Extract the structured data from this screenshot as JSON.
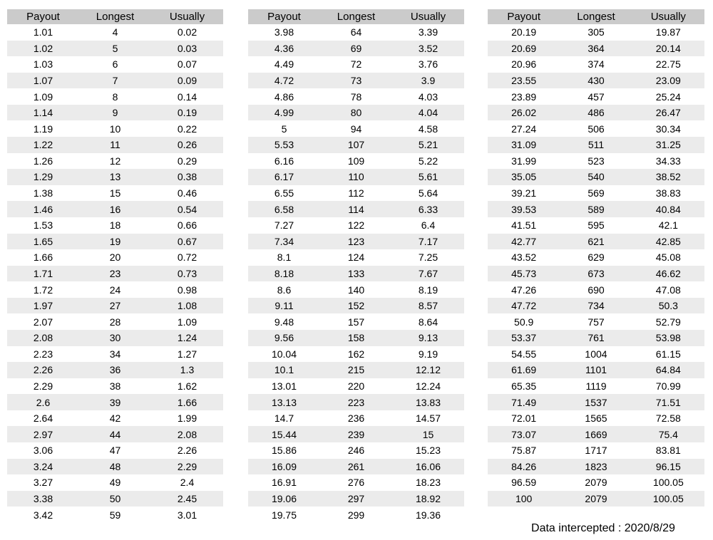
{
  "columns": [
    "Payout",
    "Longest",
    "Usually"
  ],
  "footer_note": "Data intercepted : 2020/8/29",
  "colors": {
    "header_bg": "#cbcbcb",
    "stripe_bg": "#ebebeb",
    "row_bg": "#ffffff",
    "text": "#000000"
  },
  "tables": [
    {
      "rows": [
        [
          "1.01",
          "4",
          "0.02"
        ],
        [
          "1.02",
          "5",
          "0.03"
        ],
        [
          "1.03",
          "6",
          "0.07"
        ],
        [
          "1.07",
          "7",
          "0.09"
        ],
        [
          "1.09",
          "8",
          "0.14"
        ],
        [
          "1.14",
          "9",
          "0.19"
        ],
        [
          "1.19",
          "10",
          "0.22"
        ],
        [
          "1.22",
          "11",
          "0.26"
        ],
        [
          "1.26",
          "12",
          "0.29"
        ],
        [
          "1.29",
          "13",
          "0.38"
        ],
        [
          "1.38",
          "15",
          "0.46"
        ],
        [
          "1.46",
          "16",
          "0.54"
        ],
        [
          "1.53",
          "18",
          "0.66"
        ],
        [
          "1.65",
          "19",
          "0.67"
        ],
        [
          "1.66",
          "20",
          "0.72"
        ],
        [
          "1.71",
          "23",
          "0.73"
        ],
        [
          "1.72",
          "24",
          "0.98"
        ],
        [
          "1.97",
          "27",
          "1.08"
        ],
        [
          "2.07",
          "28",
          "1.09"
        ],
        [
          "2.08",
          "30",
          "1.24"
        ],
        [
          "2.23",
          "34",
          "1.27"
        ],
        [
          "2.26",
          "36",
          "1.3"
        ],
        [
          "2.29",
          "38",
          "1.62"
        ],
        [
          "2.6",
          "39",
          "1.66"
        ],
        [
          "2.64",
          "42",
          "1.99"
        ],
        [
          "2.97",
          "44",
          "2.08"
        ],
        [
          "3.06",
          "47",
          "2.26"
        ],
        [
          "3.24",
          "48",
          "2.29"
        ],
        [
          "3.27",
          "49",
          "2.4"
        ],
        [
          "3.38",
          "50",
          "2.45"
        ],
        [
          "3.42",
          "59",
          "3.01"
        ]
      ]
    },
    {
      "rows": [
        [
          "3.98",
          "64",
          "3.39"
        ],
        [
          "4.36",
          "69",
          "3.52"
        ],
        [
          "4.49",
          "72",
          "3.76"
        ],
        [
          "4.72",
          "73",
          "3.9"
        ],
        [
          "4.86",
          "78",
          "4.03"
        ],
        [
          "4.99",
          "80",
          "4.04"
        ],
        [
          "5",
          "94",
          "4.58"
        ],
        [
          "5.53",
          "107",
          "5.21"
        ],
        [
          "6.16",
          "109",
          "5.22"
        ],
        [
          "6.17",
          "110",
          "5.61"
        ],
        [
          "6.55",
          "112",
          "5.64"
        ],
        [
          "6.58",
          "114",
          "6.33"
        ],
        [
          "7.27",
          "122",
          "6.4"
        ],
        [
          "7.34",
          "123",
          "7.17"
        ],
        [
          "8.1",
          "124",
          "7.25"
        ],
        [
          "8.18",
          "133",
          "7.67"
        ],
        [
          "8.6",
          "140",
          "8.19"
        ],
        [
          "9.11",
          "152",
          "8.57"
        ],
        [
          "9.48",
          "157",
          "8.64"
        ],
        [
          "9.56",
          "158",
          "9.13"
        ],
        [
          "10.04",
          "162",
          "9.19"
        ],
        [
          "10.1",
          "215",
          "12.12"
        ],
        [
          "13.01",
          "220",
          "12.24"
        ],
        [
          "13.13",
          "223",
          "13.83"
        ],
        [
          "14.7",
          "236",
          "14.57"
        ],
        [
          "15.44",
          "239",
          "15"
        ],
        [
          "15.86",
          "246",
          "15.23"
        ],
        [
          "16.09",
          "261",
          "16.06"
        ],
        [
          "16.91",
          "276",
          "18.23"
        ],
        [
          "19.06",
          "297",
          "18.92"
        ],
        [
          "19.75",
          "299",
          "19.36"
        ]
      ]
    },
    {
      "rows": [
        [
          "20.19",
          "305",
          "19.87"
        ],
        [
          "20.69",
          "364",
          "20.14"
        ],
        [
          "20.96",
          "374",
          "22.75"
        ],
        [
          "23.55",
          "430",
          "23.09"
        ],
        [
          "23.89",
          "457",
          "25.24"
        ],
        [
          "26.02",
          "486",
          "26.47"
        ],
        [
          "27.24",
          "506",
          "30.34"
        ],
        [
          "31.09",
          "511",
          "31.25"
        ],
        [
          "31.99",
          "523",
          "34.33"
        ],
        [
          "35.05",
          "540",
          "38.52"
        ],
        [
          "39.21",
          "569",
          "38.83"
        ],
        [
          "39.53",
          "589",
          "40.84"
        ],
        [
          "41.51",
          "595",
          "42.1"
        ],
        [
          "42.77",
          "621",
          "42.85"
        ],
        [
          "43.52",
          "629",
          "45.08"
        ],
        [
          "45.73",
          "673",
          "46.62"
        ],
        [
          "47.26",
          "690",
          "47.08"
        ],
        [
          "47.72",
          "734",
          "50.3"
        ],
        [
          "50.9",
          "757",
          "52.79"
        ],
        [
          "53.37",
          "761",
          "53.98"
        ],
        [
          "54.55",
          "1004",
          "61.15"
        ],
        [
          "61.69",
          "1101",
          "64.84"
        ],
        [
          "65.35",
          "1119",
          "70.99"
        ],
        [
          "71.49",
          "1537",
          "71.51"
        ],
        [
          "72.01",
          "1565",
          "72.58"
        ],
        [
          "73.07",
          "1669",
          "75.4"
        ],
        [
          "75.87",
          "1717",
          "83.81"
        ],
        [
          "84.26",
          "1823",
          "96.15"
        ],
        [
          "96.59",
          "2079",
          "100.05"
        ],
        [
          "100",
          "2079",
          "100.05"
        ]
      ]
    }
  ]
}
